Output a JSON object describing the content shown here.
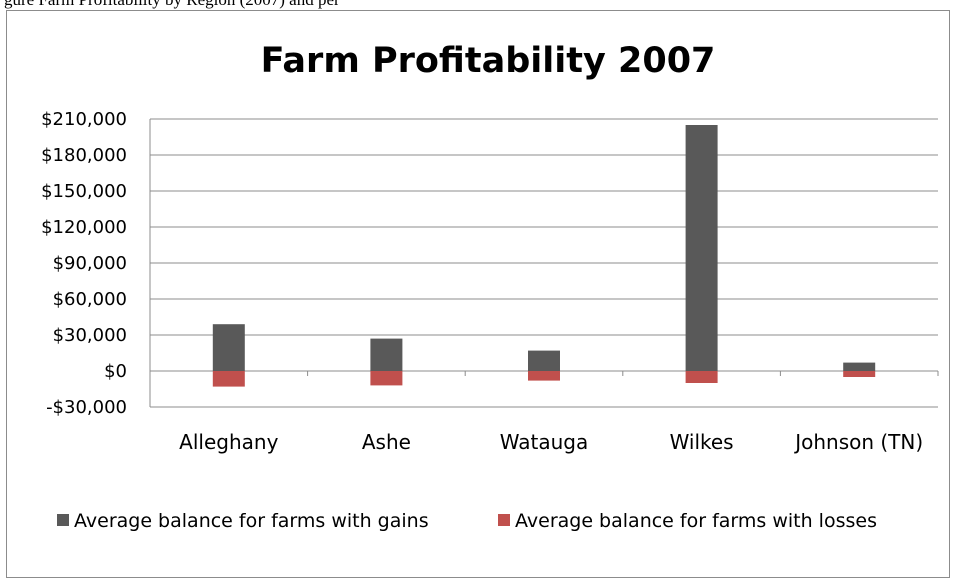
{
  "caption_fragment": "gure Farm Profitability by Region (2007) and per",
  "chart_data": {
    "type": "bar",
    "title": "Farm Profitability 2007",
    "xlabel": "",
    "ylabel": "",
    "categories": [
      "Alleghany",
      "Ashe",
      "Watauga",
      "Wilkes",
      "Johnson (TN)"
    ],
    "series": [
      {
        "name": "Average balance for farms with gains",
        "color": "#595959",
        "values": [
          39000,
          27000,
          17000,
          205000,
          7000
        ]
      },
      {
        "name": "Average balance for farms with losses",
        "color": "#c0504d",
        "values": [
          -13000,
          -12000,
          -8000,
          -10000,
          -5000
        ]
      }
    ],
    "ylim": [
      -30000,
      210000
    ],
    "yticks": [
      -30000,
      0,
      30000,
      60000,
      90000,
      120000,
      150000,
      180000,
      210000
    ],
    "ytick_labels": [
      "-$30,000",
      "$0",
      "$30,000",
      "$60,000",
      "$90,000",
      "$120,000",
      "$150,000",
      "$180,000",
      "$210,000"
    ],
    "grid": true,
    "legend_position": "bottom"
  }
}
